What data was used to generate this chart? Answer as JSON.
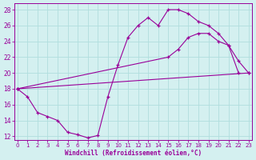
{
  "line1_x": [
    0,
    1,
    2,
    3,
    4,
    5,
    6,
    7,
    8,
    9,
    10,
    11,
    12,
    13,
    14,
    15,
    16,
    17,
    18,
    19,
    20,
    21,
    22
  ],
  "line1_y": [
    18.0,
    17.0,
    15.0,
    14.5,
    14.0,
    12.5,
    12.2,
    11.8,
    12.1,
    17.0,
    21.0,
    24.5,
    26.0,
    27.0,
    26.0,
    28.0,
    28.0,
    27.5,
    26.5,
    26.0,
    25.0,
    23.5,
    20.0
  ],
  "line2_x": [
    0,
    23
  ],
  "line2_y": [
    18.0,
    20.0
  ],
  "line3_x": [
    0,
    15,
    16,
    17,
    18,
    19,
    20,
    21,
    22,
    23
  ],
  "line3_y": [
    18.0,
    22.0,
    23.0,
    24.5,
    25.0,
    25.0,
    24.0,
    23.5,
    21.5,
    20.0
  ],
  "xlim": [
    -0.3,
    23.3
  ],
  "ylim": [
    11.5,
    28.8
  ],
  "xticks": [
    0,
    1,
    2,
    3,
    4,
    5,
    6,
    7,
    8,
    9,
    10,
    11,
    12,
    13,
    14,
    15,
    16,
    17,
    18,
    19,
    20,
    21,
    22,
    23
  ],
  "yticks": [
    12,
    14,
    16,
    18,
    20,
    22,
    24,
    26,
    28
  ],
  "xlabel": "Windchill (Refroidissement éolien,°C)",
  "line_color": "#990099",
  "bg_color": "#d4f0f0",
  "grid_color": "#b0dede"
}
